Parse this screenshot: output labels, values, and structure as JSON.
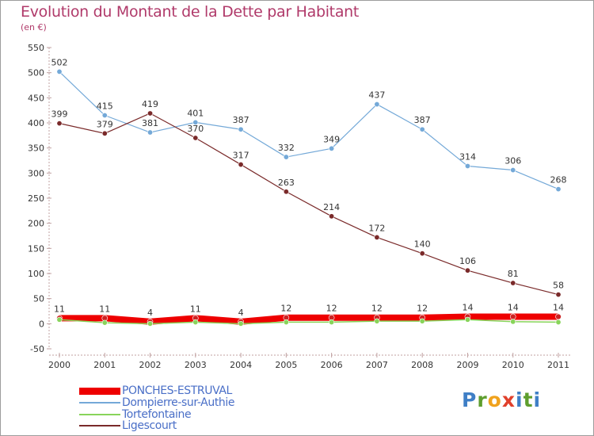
{
  "title": "Evolution du Montant de la Dette par Habitant",
  "subtitle": "(en €)",
  "logo": [
    "P",
    "r",
    "o",
    "x",
    "i",
    "t",
    "i"
  ],
  "chart_data": {
    "type": "line",
    "title": "Evolution du Montant de la Dette par Habitant",
    "subtitle": "(en €)",
    "xlabel": "",
    "ylabel": "",
    "x": [
      "2000",
      "2001",
      "2002",
      "2003",
      "2004",
      "2005",
      "2006",
      "2007",
      "2008",
      "2009",
      "2010",
      "2011"
    ],
    "ylim": [
      -50,
      550
    ],
    "yticks": [
      "550",
      "500",
      "450",
      "400",
      "350",
      "300",
      "250",
      "200",
      "150",
      "100",
      "50",
      "0",
      "-50"
    ],
    "grid": false,
    "legend_position": "bottom-left",
    "series": [
      {
        "name": "PONCHES-ESTRUVAL",
        "color": "#ee0000",
        "values": [
          11,
          11,
          4,
          11,
          4,
          12,
          12,
          12,
          12,
          14,
          14,
          14
        ]
      },
      {
        "name": "Dompierre-sur-Authie",
        "color": "#74a9d8",
        "values": [
          502,
          415,
          381,
          401,
          387,
          332,
          349,
          437,
          387,
          314,
          306,
          268
        ]
      },
      {
        "name": "Tortefontaine",
        "color": "#88d45a",
        "values": [
          8,
          2,
          0,
          3,
          0,
          3,
          3,
          5,
          5,
          8,
          4,
          3
        ]
      },
      {
        "name": "Ligescourt",
        "color": "#7a2a2a",
        "values": [
          399,
          379,
          419,
          370,
          317,
          263,
          214,
          172,
          140,
          106,
          81,
          58
        ]
      }
    ]
  }
}
